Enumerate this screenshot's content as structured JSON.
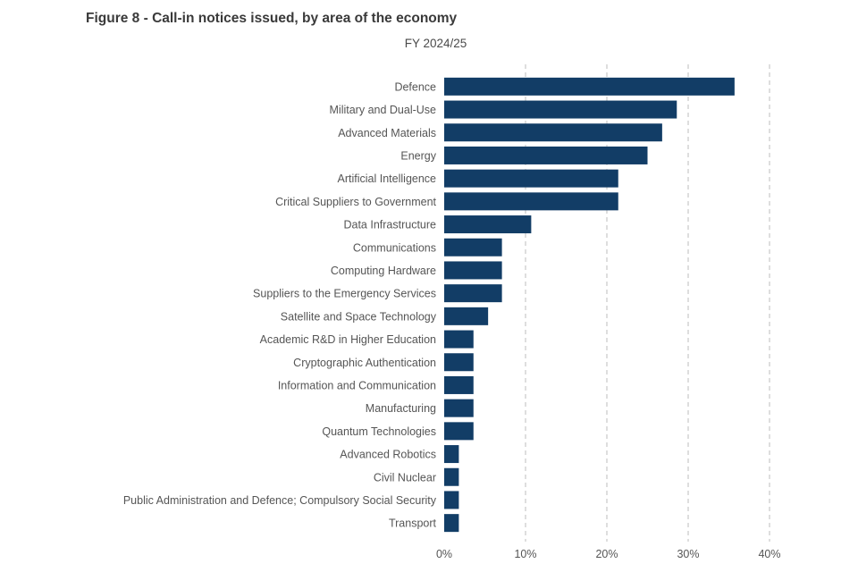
{
  "header": {
    "title": "Figure 8 - Call-in notices issued, by area of the economy",
    "subtitle": "FY 2024/25"
  },
  "chart_data": {
    "type": "bar",
    "orientation": "horizontal",
    "title": "Figure 8 - Call-in notices issued, by area of the economy",
    "subtitle": "FY 2024/25",
    "xlabel": "",
    "ylabel": "",
    "xlim": [
      0,
      0.4
    ],
    "x_ticks": [
      0,
      0.1,
      0.2,
      0.3,
      0.4
    ],
    "x_tick_labels": [
      "0%",
      "10%",
      "20%",
      "30%",
      "40%"
    ],
    "grid": "vertical dashed",
    "bar_color": "#123d66",
    "categories": [
      "Defence",
      "Military and Dual-Use",
      "Advanced Materials",
      "Energy",
      "Artificial Intelligence",
      "Critical Suppliers to Government",
      "Data Infrastructure",
      "Communications",
      "Computing Hardware",
      "Suppliers to the Emergency Services",
      "Satellite and Space Technology",
      "Academic R&D in Higher Education",
      "Cryptographic Authentication",
      "Information and Communication",
      "Manufacturing",
      "Quantum Technologies",
      "Advanced Robotics",
      "Civil Nuclear",
      "Public Administration and Defence; Compulsory Social Security",
      "Transport"
    ],
    "values": [
      0.357,
      0.286,
      0.268,
      0.25,
      0.214,
      0.214,
      0.107,
      0.071,
      0.071,
      0.071,
      0.054,
      0.036,
      0.036,
      0.036,
      0.036,
      0.036,
      0.018,
      0.018,
      0.018,
      0.018
    ]
  }
}
